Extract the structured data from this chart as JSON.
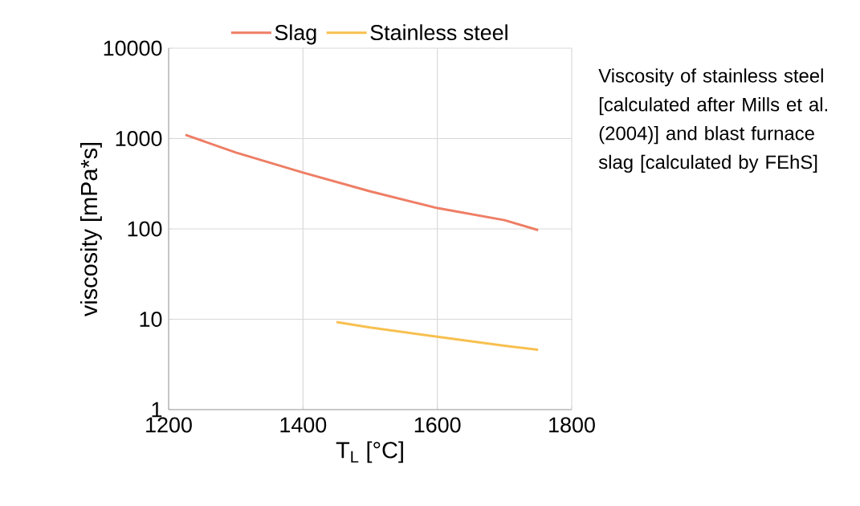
{
  "chart_data": {
    "type": "line",
    "xlabel": "T$_{L}$ [°C]",
    "ylabel": "viscosity [mPa*s]",
    "annotations": [
      "Viscosity of stainless steel [calculated after Mills et al. (2004)] and blast furnace slag [calculated by FEhS]"
    ],
    "series": [
      {
        "name": "Slag",
        "color": "#ee7e65",
        "x": [
          1225,
          1300,
          1400,
          1500,
          1600,
          1700,
          1750
        ],
        "values": [
          1100,
          700,
          420,
          260,
          170,
          125,
          97
        ]
      },
      {
        "name": "Stainless steel",
        "color": "#f8c050",
        "x": [
          1450,
          1500,
          1600,
          1700,
          1750
        ],
        "values": [
          9.3,
          8.1,
          6.4,
          5.1,
          4.6
        ]
      }
    ],
    "xlim": [
      1200,
      1800
    ],
    "xticks": [
      1200,
      1400,
      1600,
      1800
    ],
    "ylim": [
      1,
      10000
    ],
    "yticks": [
      1,
      10,
      100,
      1000,
      10000
    ],
    "log": "y",
    "grid": true,
    "legend": "top",
    "marker": "none",
    "line_style": "solid"
  }
}
